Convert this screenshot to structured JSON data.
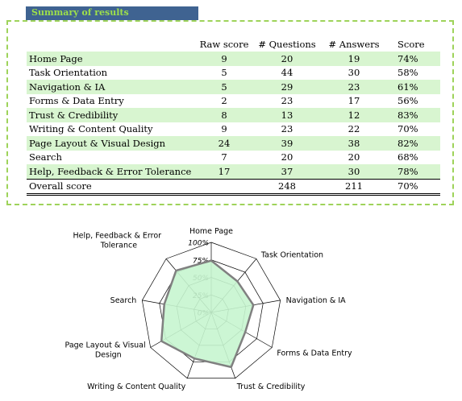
{
  "header": {
    "title": "Summary of results"
  },
  "table": {
    "columns": [
      "",
      "Raw score",
      "# Questions",
      "# Answers",
      "Score"
    ],
    "rows": [
      {
        "name": "Home Page",
        "raw": "9",
        "questions": "20",
        "answers": "19",
        "score": "74%"
      },
      {
        "name": "Task Orientation",
        "raw": "5",
        "questions": "44",
        "answers": "30",
        "score": "58%"
      },
      {
        "name": "Navigation & IA",
        "raw": "5",
        "questions": "29",
        "answers": "23",
        "score": "61%"
      },
      {
        "name": "Forms & Data Entry",
        "raw": "2",
        "questions": "23",
        "answers": "17",
        "score": "56%"
      },
      {
        "name": "Trust & Credibility",
        "raw": "8",
        "questions": "13",
        "answers": "12",
        "score": "83%"
      },
      {
        "name": "Writing & Content Quality",
        "raw": "9",
        "questions": "23",
        "answers": "22",
        "score": "70%"
      },
      {
        "name": "Page Layout & Visual Design",
        "raw": "24",
        "questions": "39",
        "answers": "38",
        "score": "82%"
      },
      {
        "name": "Search",
        "raw": "7",
        "questions": "20",
        "answers": "20",
        "score": "68%"
      },
      {
        "name": "Help, Feedback & Error Tolerance",
        "raw": "17",
        "questions": "37",
        "answers": "30",
        "score": "78%"
      }
    ],
    "total": {
      "name": "Overall score",
      "raw": "",
      "questions": "248",
      "answers": "211",
      "score": "70%"
    }
  },
  "chart_data": {
    "type": "radar",
    "categories": [
      "Home Page",
      "Task Orientation",
      "Navigation & IA",
      "Forms & Data Entry",
      "Trust & Credibility",
      "Writing & Content Quality",
      "Page Layout & Visual Design",
      "Search",
      "Help, Feedback & Error Tolerance"
    ],
    "series": [
      {
        "values": [
          74,
          58,
          61,
          56,
          83,
          70,
          82,
          68,
          78
        ]
      }
    ],
    "ylim": [
      0,
      100
    ],
    "tick_labels": [
      "0%",
      "25%",
      "50%",
      "75%",
      "100%"
    ],
    "fill_color": "#c6f5cf",
    "line_color": "#808080"
  }
}
